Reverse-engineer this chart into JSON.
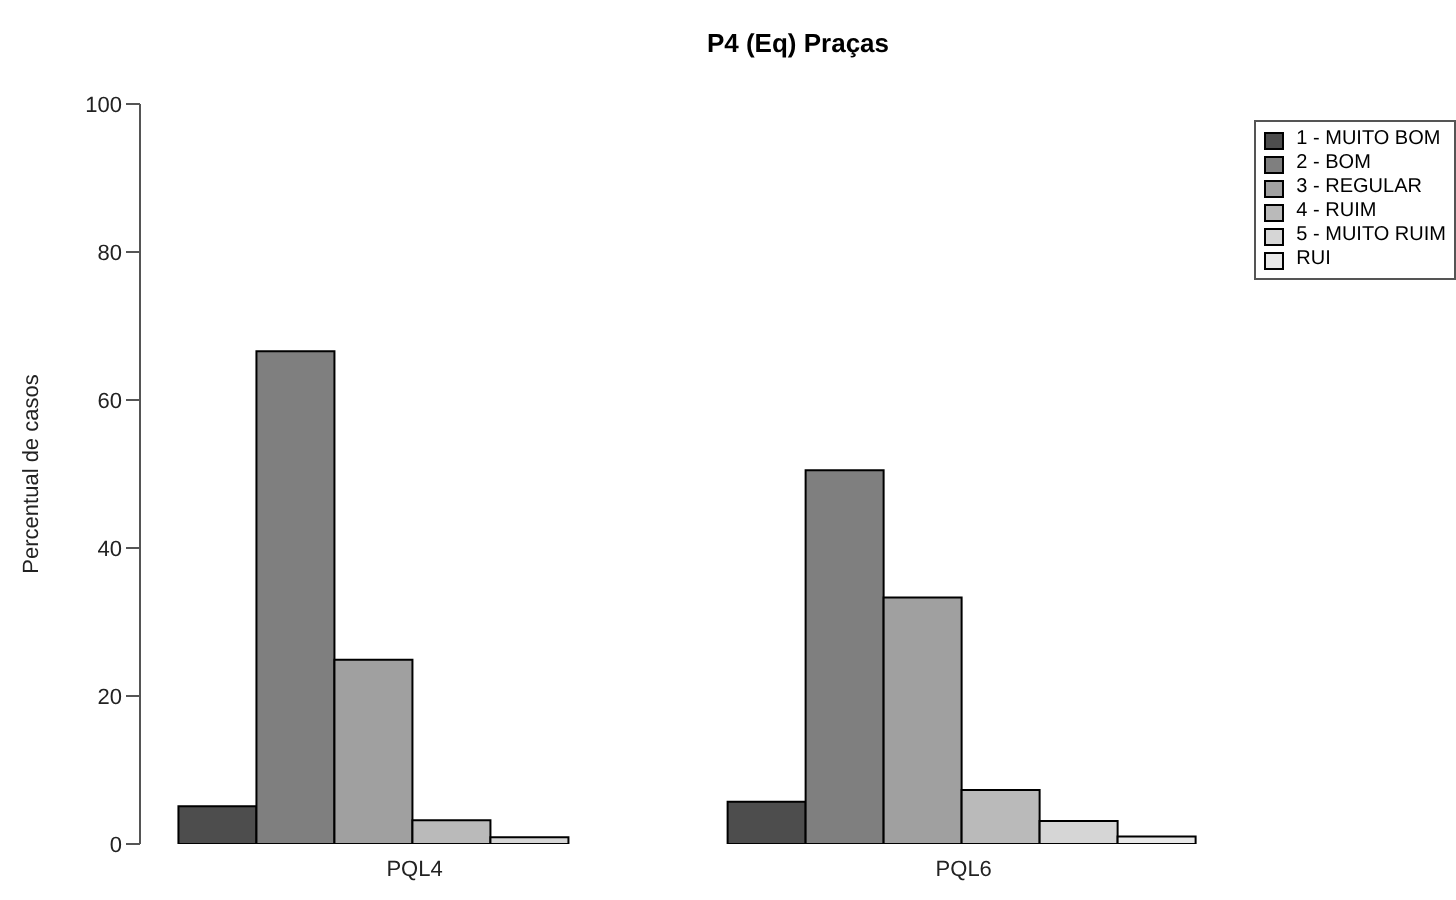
{
  "chart_data": {
    "type": "bar",
    "title": "P4 (Eq) Praças",
    "ylabel": "Percentual de casos",
    "categories": [
      "PQL4",
      "PQL6"
    ],
    "series": [
      {
        "name": "1 - MUITO BOM",
        "color": "#4d4d4d",
        "values": [
          5.1,
          5.7
        ]
      },
      {
        "name": "2 - BOM",
        "color": "#7f7f7f",
        "values": [
          66.6,
          50.5
        ]
      },
      {
        "name": "3 - REGULAR",
        "color": "#a0a0a0",
        "values": [
          24.9,
          33.3
        ]
      },
      {
        "name": "4 - RUIM",
        "color": "#bababa",
        "values": [
          3.2,
          7.3
        ]
      },
      {
        "name": "5 - MUITO RUIM",
        "color": "#d6d6d6",
        "values": [
          0.9,
          3.1
        ]
      },
      {
        "name": "RUI",
        "color": "#e8e8e8",
        "values": [
          0,
          1.0
        ]
      }
    ],
    "ylim": [
      0,
      100
    ],
    "yticks": [
      0,
      20,
      40,
      60,
      80,
      100
    ],
    "grid": false,
    "legend": "top right"
  }
}
